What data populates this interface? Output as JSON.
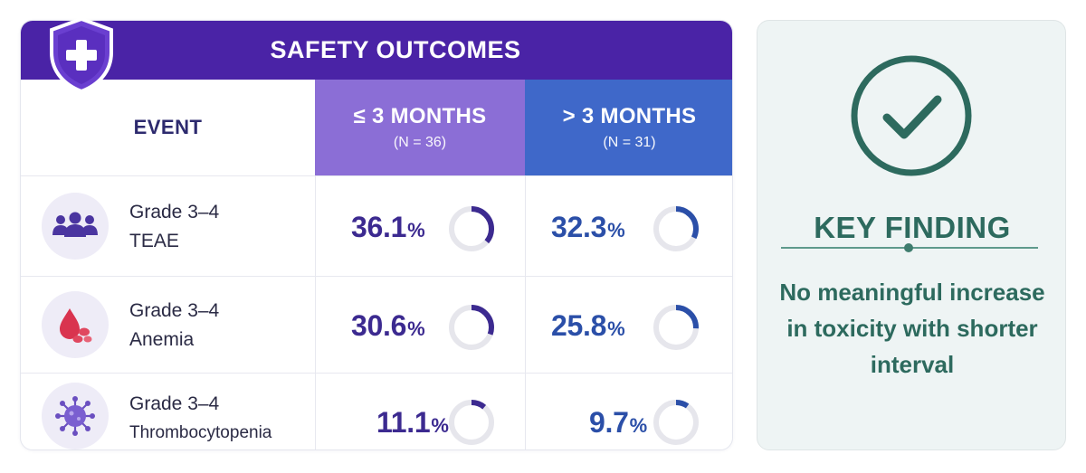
{
  "table": {
    "title": "SAFETY OUTCOMES",
    "header_event": "EVENT",
    "col1": {
      "label": "≤ 3 MONTHS",
      "n": "(N = 36)"
    },
    "col2": {
      "label": "> 3 MONTHS",
      "n": "(N = 31)"
    },
    "rows": [
      {
        "label_line1": "Grade 3–4",
        "label_line2": "TEAE",
        "icon": "people-group-icon",
        "col1": {
          "value": "36.1",
          "unit": "%",
          "fraction": 0.361
        },
        "col2": {
          "value": "32.3",
          "unit": "%",
          "fraction": 0.323
        }
      },
      {
        "label_line1": "Grade 3–4",
        "label_line2": "Anemia",
        "icon": "blood-drop-icon",
        "col1": {
          "value": "30.6",
          "unit": "%",
          "fraction": 0.306
        },
        "col2": {
          "value": "25.8",
          "unit": "%",
          "fraction": 0.258
        }
      },
      {
        "label_line1": "Grade 3–4",
        "label_line2": "Thrombocytopenia",
        "icon": "virus-icon",
        "col1": {
          "value": "11.1",
          "unit": "%",
          "fraction": 0.111
        },
        "col2": {
          "value": "9.7",
          "unit": "%",
          "fraction": 0.097
        }
      }
    ]
  },
  "key_finding": {
    "title": "KEY FINDING",
    "body": "No meaningful increase in toxicity with shorter interval",
    "icon": "checkmark-circle-icon"
  },
  "colors": {
    "title_bar": "#4a23a6",
    "col1_header": "#8b6ed6",
    "col2_header": "#3f68c9",
    "col1_ring": "#3c2a90",
    "col2_ring": "#2b4fa8",
    "ring_track": "#e6e6ec",
    "key_accent": "#2d6a5e"
  }
}
